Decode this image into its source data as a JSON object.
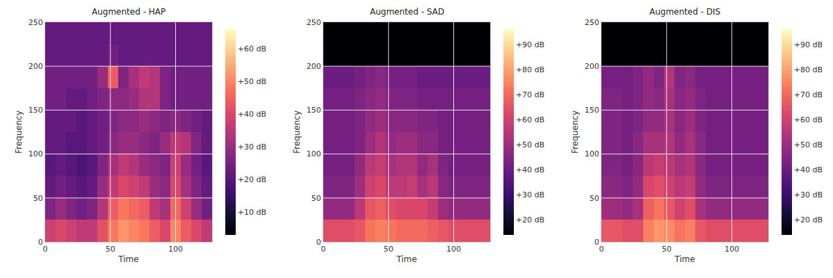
{
  "chart_data": [
    {
      "type": "heatmap",
      "title": "Augmented - HAP",
      "x_label": "Time",
      "y_label": "Frequency",
      "color": "magma",
      "grid": true,
      "x": [
        4,
        12,
        20,
        28,
        36,
        44,
        52,
        60,
        68,
        76,
        84,
        92,
        100,
        108,
        116,
        124
      ],
      "y": [
        12.5,
        37.5,
        62.5,
        87.5,
        112.5,
        137.5,
        162.5,
        187.5,
        212.5,
        237.5
      ],
      "z": [
        [
          38,
          40,
          38,
          36,
          36,
          42,
          48,
          52,
          50,
          48,
          44,
          40,
          50,
          44,
          40,
          36
        ],
        [
          26,
          30,
          26,
          24,
          26,
          34,
          44,
          48,
          46,
          44,
          36,
          32,
          46,
          38,
          30,
          24
        ],
        [
          22,
          24,
          22,
          20,
          22,
          30,
          36,
          40,
          38,
          36,
          30,
          28,
          40,
          32,
          26,
          22
        ],
        [
          20,
          22,
          20,
          18,
          20,
          26,
          32,
          36,
          34,
          30,
          28,
          26,
          38,
          30,
          24,
          20
        ],
        [
          22,
          22,
          20,
          20,
          22,
          24,
          28,
          30,
          30,
          28,
          26,
          30,
          36,
          34,
          26,
          22
        ],
        [
          22,
          22,
          22,
          20,
          22,
          24,
          26,
          28,
          28,
          30,
          28,
          26,
          28,
          26,
          24,
          22
        ],
        [
          24,
          24,
          22,
          22,
          24,
          26,
          28,
          28,
          30,
          34,
          34,
          26,
          24,
          24,
          24,
          24
        ],
        [
          24,
          24,
          24,
          24,
          24,
          30,
          44,
          26,
          32,
          36,
          34,
          26,
          24,
          24,
          24,
          24
        ],
        [
          22,
          22,
          22,
          22,
          22,
          22,
          24,
          22,
          22,
          22,
          22,
          22,
          22,
          22,
          22,
          22
        ],
        [
          22,
          22,
          22,
          22,
          22,
          22,
          22,
          22,
          22,
          22,
          22,
          22,
          22,
          22,
          22,
          22
        ]
      ],
      "xlim": [
        0,
        128
      ],
      "xticks": [
        0,
        50,
        100
      ],
      "ylim": [
        0,
        250
      ],
      "yticks": [
        0,
        50,
        100,
        150,
        200,
        250
      ],
      "zlim": [
        3,
        66
      ],
      "zticks": [
        {
          "value": 10,
          "label": "+10 dB"
        },
        {
          "value": 20,
          "label": "+20 dB"
        },
        {
          "value": 30,
          "label": "+30 dB"
        },
        {
          "value": 40,
          "label": "+40 dB"
        },
        {
          "value": 50,
          "label": "+50 dB"
        },
        {
          "value": 60,
          "label": "+60 dB"
        }
      ]
    },
    {
      "type": "heatmap",
      "title": "Augmented - SAD",
      "x_label": "Time",
      "y_label": "Frequency",
      "color": "magma",
      "grid": true,
      "x": [
        4,
        12,
        20,
        28,
        36,
        44,
        52,
        60,
        68,
        76,
        84,
        92,
        100,
        108,
        116,
        124
      ],
      "y": [
        12.5,
        37.5,
        62.5,
        87.5,
        112.5,
        137.5,
        162.5,
        187.5,
        212.5,
        237.5
      ],
      "z": [
        [
          64,
          64,
          64,
          66,
          72,
          74,
          72,
          70,
          70,
          70,
          68,
          66,
          64,
          64,
          64,
          64
        ],
        [
          48,
          48,
          48,
          56,
          66,
          68,
          64,
          62,
          62,
          62,
          58,
          50,
          48,
          48,
          48,
          48
        ],
        [
          44,
          44,
          44,
          50,
          60,
          62,
          56,
          56,
          58,
          52,
          56,
          46,
          44,
          44,
          44,
          44
        ],
        [
          42,
          42,
          42,
          48,
          56,
          58,
          52,
          54,
          54,
          48,
          52,
          44,
          42,
          42,
          42,
          42
        ],
        [
          42,
          42,
          42,
          44,
          50,
          54,
          48,
          50,
          50,
          46,
          46,
          42,
          42,
          42,
          42,
          42
        ],
        [
          42,
          42,
          42,
          44,
          48,
          50,
          46,
          46,
          46,
          44,
          44,
          42,
          42,
          42,
          42,
          42
        ],
        [
          42,
          42,
          42,
          44,
          46,
          48,
          44,
          44,
          44,
          42,
          42,
          42,
          42,
          42,
          42,
          42
        ],
        [
          40,
          40,
          40,
          42,
          44,
          46,
          42,
          42,
          42,
          40,
          40,
          40,
          40,
          40,
          40,
          40
        ],
        [
          14,
          14,
          14,
          14,
          14,
          14,
          14,
          14,
          14,
          14,
          14,
          14,
          14,
          14,
          14,
          14
        ],
        [
          14,
          14,
          14,
          14,
          14,
          14,
          14,
          14,
          14,
          14,
          14,
          14,
          14,
          14,
          14,
          14
        ]
      ],
      "xlim": [
        0,
        128
      ],
      "xticks": [
        0,
        50,
        100
      ],
      "ylim": [
        0,
        250
      ],
      "yticks": [
        0,
        50,
        100,
        150,
        200,
        250
      ],
      "zlim": [
        14,
        96
      ],
      "zticks": [
        {
          "value": 20,
          "label": "+20 dB"
        },
        {
          "value": 30,
          "label": "+30 dB"
        },
        {
          "value": 40,
          "label": "+40 dB"
        },
        {
          "value": 50,
          "label": "+50 dB"
        },
        {
          "value": 60,
          "label": "+60 dB"
        },
        {
          "value": 70,
          "label": "+70 dB"
        },
        {
          "value": 80,
          "label": "+80 dB"
        },
        {
          "value": 90,
          "label": "+90 dB"
        }
      ]
    },
    {
      "type": "heatmap",
      "title": "Augmented - DIS",
      "x_label": "Time",
      "y_label": "Frequency",
      "color": "magma",
      "grid": true,
      "x": [
        4,
        12,
        20,
        28,
        36,
        44,
        52,
        60,
        68,
        76,
        84,
        92,
        100,
        108,
        116,
        124
      ],
      "y": [
        12.5,
        37.5,
        62.5,
        87.5,
        112.5,
        137.5,
        162.5,
        187.5,
        212.5,
        237.5
      ],
      "z": [
        [
          66,
          66,
          64,
          64,
          74,
          78,
          76,
          72,
          74,
          66,
          64,
          64,
          64,
          64,
          64,
          64
        ],
        [
          50,
          50,
          48,
          52,
          68,
          72,
          66,
          60,
          64,
          52,
          48,
          48,
          48,
          48,
          48,
          48
        ],
        [
          46,
          46,
          44,
          48,
          62,
          64,
          60,
          56,
          58,
          48,
          44,
          44,
          44,
          44,
          44,
          44
        ],
        [
          44,
          44,
          42,
          46,
          56,
          58,
          56,
          52,
          54,
          46,
          42,
          42,
          42,
          42,
          42,
          42
        ],
        [
          44,
          44,
          42,
          46,
          52,
          52,
          54,
          48,
          52,
          46,
          42,
          42,
          42,
          42,
          42,
          42
        ],
        [
          44,
          44,
          42,
          44,
          48,
          48,
          52,
          46,
          50,
          44,
          42,
          42,
          42,
          42,
          42,
          42
        ],
        [
          44,
          44,
          42,
          44,
          48,
          46,
          52,
          46,
          48,
          44,
          42,
          42,
          42,
          42,
          42,
          42
        ],
        [
          42,
          42,
          42,
          44,
          48,
          44,
          54,
          44,
          46,
          42,
          42,
          42,
          42,
          42,
          42,
          42
        ],
        [
          14,
          14,
          14,
          14,
          14,
          14,
          14,
          14,
          14,
          14,
          14,
          14,
          14,
          14,
          14,
          14
        ],
        [
          14,
          14,
          14,
          14,
          14,
          14,
          14,
          14,
          14,
          14,
          14,
          14,
          14,
          14,
          14,
          14
        ]
      ],
      "xlim": [
        0,
        128
      ],
      "xticks": [
        0,
        50,
        100
      ],
      "ylim": [
        0,
        250
      ],
      "yticks": [
        0,
        50,
        100,
        150,
        200,
        250
      ],
      "zlim": [
        14,
        96
      ],
      "zticks": [
        {
          "value": 20,
          "label": "+20 dB"
        },
        {
          "value": 30,
          "label": "+30 dB"
        },
        {
          "value": 40,
          "label": "+40 dB"
        },
        {
          "value": 50,
          "label": "+50 dB"
        },
        {
          "value": 60,
          "label": "+60 dB"
        },
        {
          "value": 70,
          "label": "+70 dB"
        },
        {
          "value": 80,
          "label": "+80 dB"
        },
        {
          "value": 90,
          "label": "+90 dB"
        }
      ]
    }
  ]
}
